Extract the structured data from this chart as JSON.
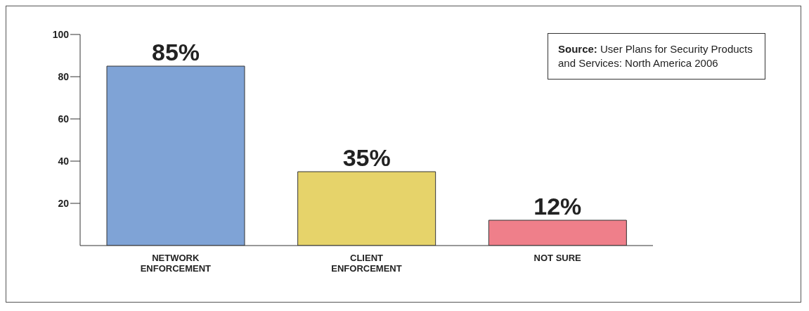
{
  "chart_data": {
    "type": "bar",
    "categories": [
      "NETWORK ENFORCEMENT",
      "CLIENT ENFORCEMENT",
      "NOT SURE"
    ],
    "values": [
      85,
      35,
      12
    ],
    "colors": [
      "#7fa3d6",
      "#e6d36a",
      "#ef7f8a"
    ],
    "value_labels": [
      "85%",
      "35%",
      "12%"
    ],
    "ylim": [
      0,
      100
    ],
    "yticks": [
      20,
      40,
      60,
      80,
      100
    ],
    "grid": false,
    "annotations": [
      "Source: User Plans for Security Products and Services: North America 2006"
    ]
  }
}
